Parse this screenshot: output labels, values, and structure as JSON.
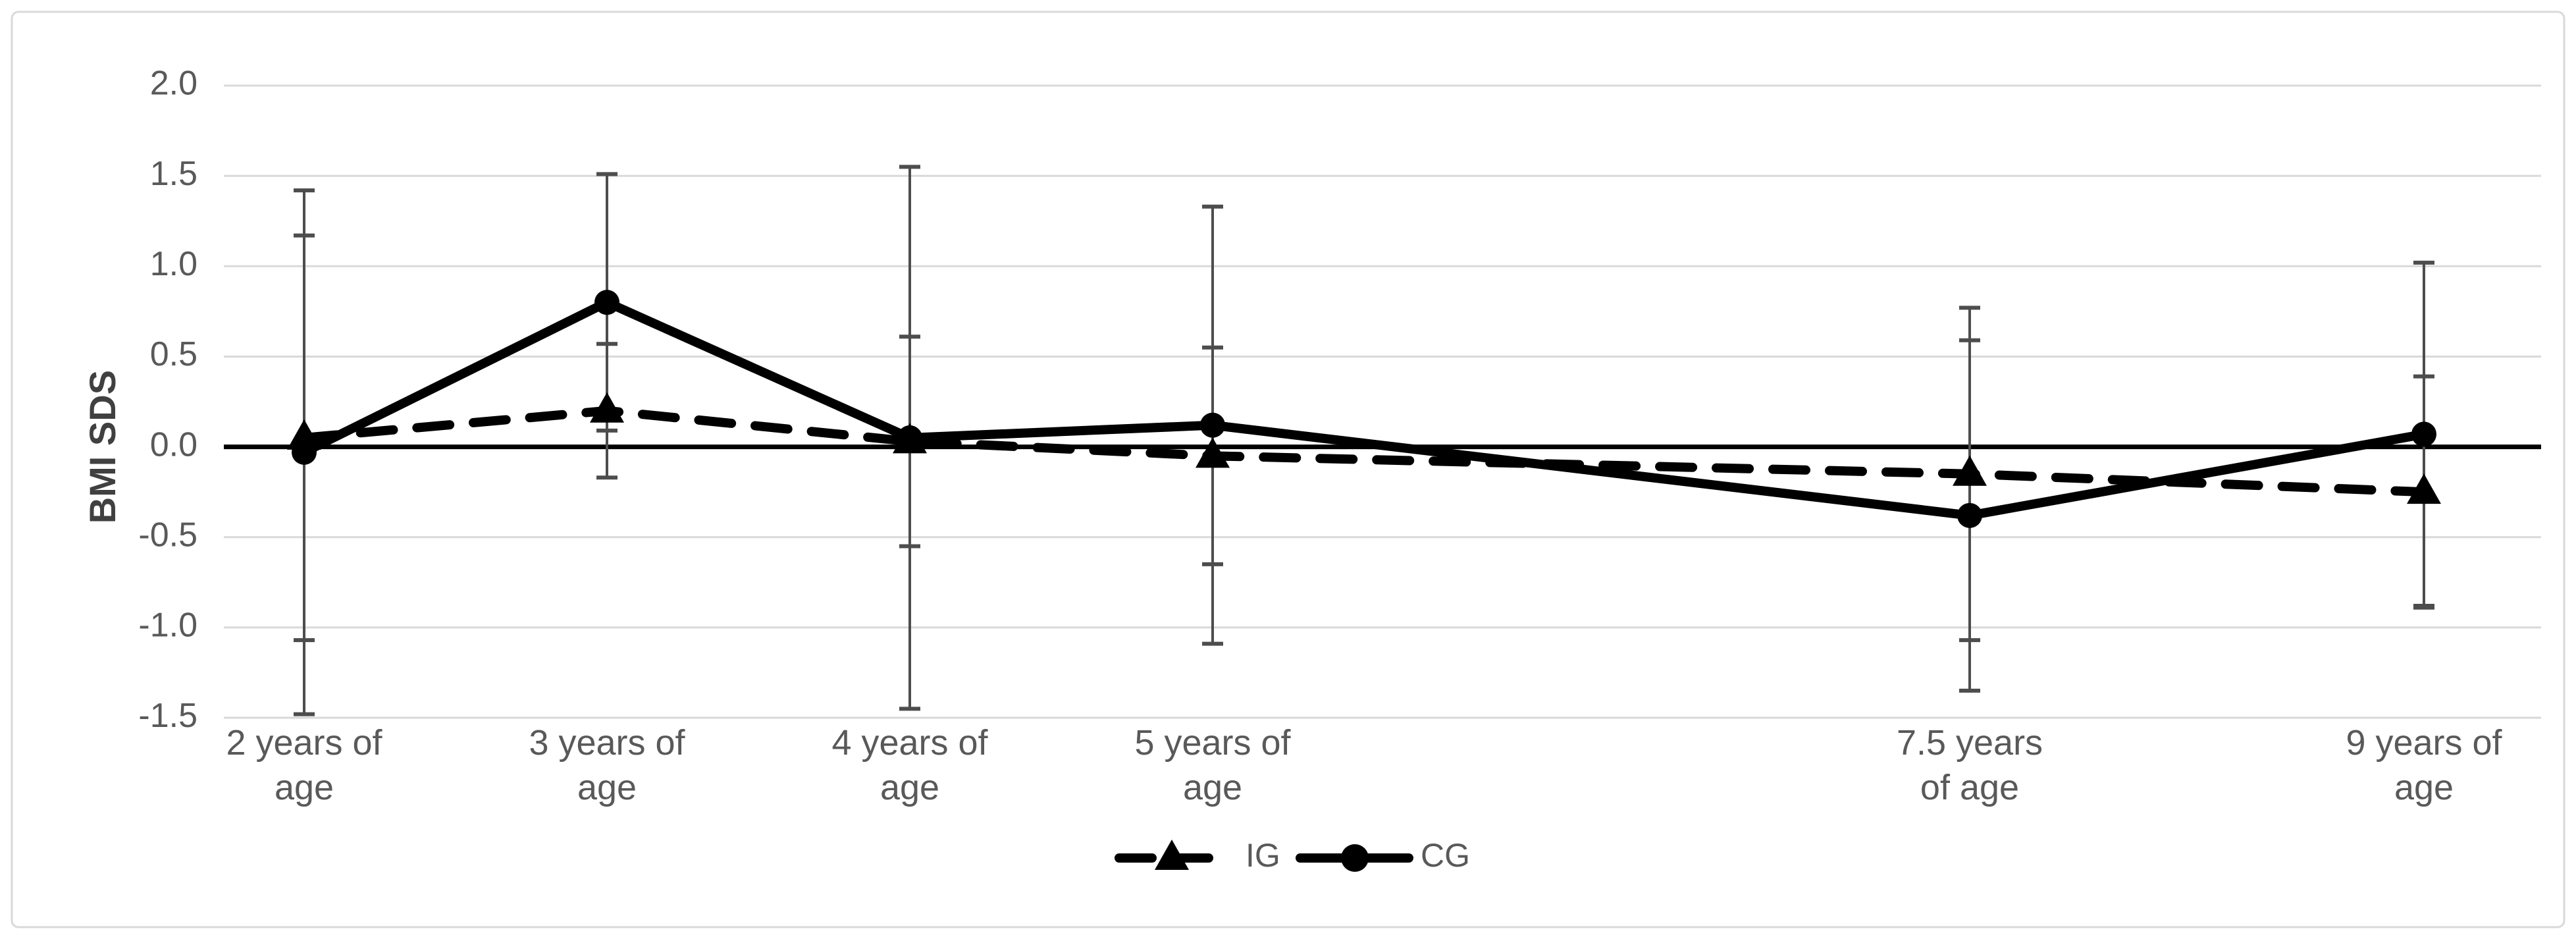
{
  "colors": {
    "series": "#000000",
    "grid": "#d9d9d9",
    "border": "#d9d9d9",
    "tick_text": "#595959",
    "axis_title_text": "#404040",
    "error_bar": "#4d4d4d",
    "zero_axis": "#000000"
  },
  "chart_data": {
    "type": "line",
    "title": "",
    "xlabel": "",
    "ylabel": "BMI SDS",
    "ylim": [
      -1.5,
      2.0
    ],
    "yticks": [
      "2.0",
      "1.5",
      "1.0",
      "0.5",
      "0.0",
      "-0.5",
      "-1.0",
      "-1.5"
    ],
    "grid": true,
    "legend_position": "bottom-center",
    "x_ages": [
      2,
      3,
      4,
      5,
      7.5,
      9
    ],
    "xlim_ages": [
      1.73,
      9.39
    ],
    "categories": [
      [
        "2 years of",
        "age"
      ],
      [
        "3 years of",
        "age"
      ],
      [
        "4 years of",
        "age"
      ],
      [
        "5 years of",
        "age"
      ],
      [
        "7.5 years",
        "of age"
      ],
      [
        "9 years of",
        "age"
      ]
    ],
    "series": [
      {
        "name": "IG",
        "line_style": "dashed",
        "marker": "triangle",
        "values": [
          0.05,
          0.2,
          0.03,
          -0.05,
          -0.15,
          -0.25
        ],
        "errors": [
          1.12,
          0.37,
          0.58,
          0.6,
          0.92,
          0.64
        ]
      },
      {
        "name": "CG",
        "line_style": "solid",
        "marker": "circle",
        "values": [
          -0.03,
          0.8,
          0.05,
          0.12,
          -0.38,
          0.07
        ],
        "errors": [
          1.45,
          0.71,
          1.5,
          1.21,
          0.97,
          0.95
        ]
      }
    ]
  }
}
